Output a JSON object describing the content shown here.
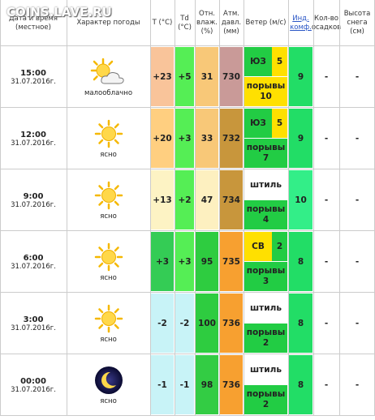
{
  "watermark": "COINS.LAVE.RU",
  "header": {
    "columns": [
      "Дата и время (местное)",
      "Характер погоды",
      "T (°C)",
      "Td (°C)",
      "Отн. влаж. (%)",
      "Атм. давл. (мм)",
      "Ветер (м/с)",
      "Инд. комф.",
      "Кол-во осадков",
      "Высота снега (см)"
    ]
  },
  "rows": [
    {
      "time": "15:00",
      "date": "31.07.2016г.",
      "weather": "малооблачно",
      "t": "+23",
      "td": "+5",
      "humidity": "31",
      "pressure": "730",
      "wind": {
        "direction": "ЮЗ",
        "speed": "5",
        "gusts_label": "порывы",
        "gusts": "10"
      },
      "comfort": "9",
      "precip": "-",
      "snow": "-"
    },
    {
      "time": "12:00",
      "date": "31.07.2016г.",
      "weather": "ясно",
      "t": "+20",
      "td": "+3",
      "humidity": "33",
      "pressure": "732",
      "wind": {
        "direction": "ЮЗ",
        "speed": "5",
        "gusts_label": "порывы",
        "gusts": "7"
      },
      "comfort": "9",
      "precip": "-",
      "snow": "-"
    },
    {
      "time": "9:00",
      "date": "31.07.2016г.",
      "weather": "ясно",
      "t": "+13",
      "td": "+2",
      "humidity": "47",
      "pressure": "734",
      "wind": {
        "calm": "штиль",
        "gusts_label": "порывы",
        "gusts": "4"
      },
      "comfort": "10",
      "precip": "-",
      "snow": "-"
    },
    {
      "time": "6:00",
      "date": "31.07.2016г.",
      "weather": "ясно",
      "t": "+3",
      "td": "+3",
      "humidity": "95",
      "pressure": "735",
      "wind": {
        "direction": "СВ",
        "speed": "2",
        "gusts_label": "порывы",
        "gusts": "3"
      },
      "comfort": "8",
      "precip": "-",
      "snow": "-"
    },
    {
      "time": "3:00",
      "date": "31.07.2016г.",
      "weather": "ясно",
      "t": "-2",
      "td": "-2",
      "humidity": "100",
      "pressure": "736",
      "wind": {
        "calm": "штиль",
        "gusts_label": "порывы",
        "gusts": "2"
      },
      "comfort": "8",
      "precip": "-",
      "snow": "-"
    },
    {
      "time": "00:00",
      "date": "31.07.2016г.",
      "weather": "ясно",
      "t": "-1",
      "td": "-1",
      "humidity": "98",
      "pressure": "736",
      "wind": {
        "calm": "штиль",
        "gusts_label": "порывы",
        "gusts": "2"
      },
      "comfort": "8",
      "precip": "-",
      "snow": "-"
    }
  ]
}
